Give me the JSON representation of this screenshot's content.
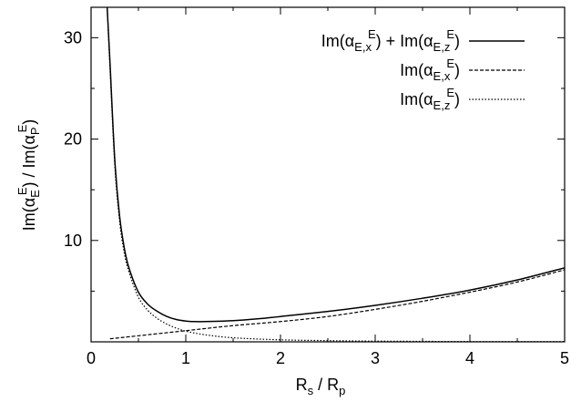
{
  "chart_data": {
    "type": "line",
    "xlabel": {
      "base": "R",
      "sub1": "s",
      "mid": " / R",
      "sub2": "p"
    },
    "ylabel": {
      "p1": "Im(α",
      "sub1": "E",
      "sup1": "E",
      "p2": ") / Im(α",
      "sub2": "P",
      "sup2": "E",
      "p3": ")"
    },
    "xlim": [
      0,
      5
    ],
    "ylim": [
      0,
      33
    ],
    "xticks": [
      "0",
      "1",
      "2",
      "3",
      "4",
      "5"
    ],
    "yticks": [
      "10",
      "20",
      "30"
    ],
    "grid": false,
    "legend_position": "top-right",
    "series": [
      {
        "name": {
          "p1": "Im(α",
          "sub1": "E,x",
          "sup1": "E",
          "p2": ") + Im(α",
          "sub2": "E,z",
          "sup2": "E",
          "p3": ")"
        },
        "style": "solid",
        "x": [
          0.17,
          0.2,
          0.25,
          0.3,
          0.35,
          0.4,
          0.5,
          0.6,
          0.7,
          0.8,
          0.9,
          1.0,
          1.1,
          1.2,
          1.4,
          1.6,
          1.8,
          2.0,
          2.5,
          3.0,
          3.5,
          4.0,
          4.5,
          5.0
        ],
        "y": [
          33,
          27.5,
          18.0,
          12.5,
          9.3,
          7.3,
          4.9,
          3.7,
          3.0,
          2.5,
          2.2,
          2.05,
          2.0,
          2.0,
          2.05,
          2.15,
          2.3,
          2.5,
          3.0,
          3.6,
          4.3,
          5.1,
          6.1,
          7.3
        ]
      },
      {
        "name": {
          "p1": "Im(α",
          "sub1": "E,x",
          "sup1": "E",
          "p2": ")"
        },
        "style": "dashed",
        "x": [
          0.2,
          0.5,
          1.0,
          1.5,
          2.0,
          2.5,
          3.0,
          3.5,
          4.0,
          4.5,
          5.0
        ],
        "y": [
          0.3,
          0.6,
          1.1,
          1.6,
          2.0,
          2.5,
          3.2,
          4.0,
          4.9,
          5.9,
          7.1
        ]
      },
      {
        "name": {
          "p1": "Im(α",
          "sub1": "E,z",
          "sup1": "E",
          "p2": ")"
        },
        "style": "dotted",
        "x": [
          0.17,
          0.2,
          0.25,
          0.3,
          0.35,
          0.4,
          0.5,
          0.6,
          0.7,
          0.8,
          0.9,
          1.0,
          1.2,
          1.5,
          2.0,
          2.5,
          3.0,
          4.0,
          5.0
        ],
        "y": [
          33,
          27.0,
          17.5,
          12.0,
          8.8,
          6.9,
          4.4,
          3.1,
          2.3,
          1.75,
          1.35,
          1.05,
          0.7,
          0.4,
          0.2,
          0.12,
          0.07,
          0.03,
          0.02
        ]
      }
    ]
  }
}
